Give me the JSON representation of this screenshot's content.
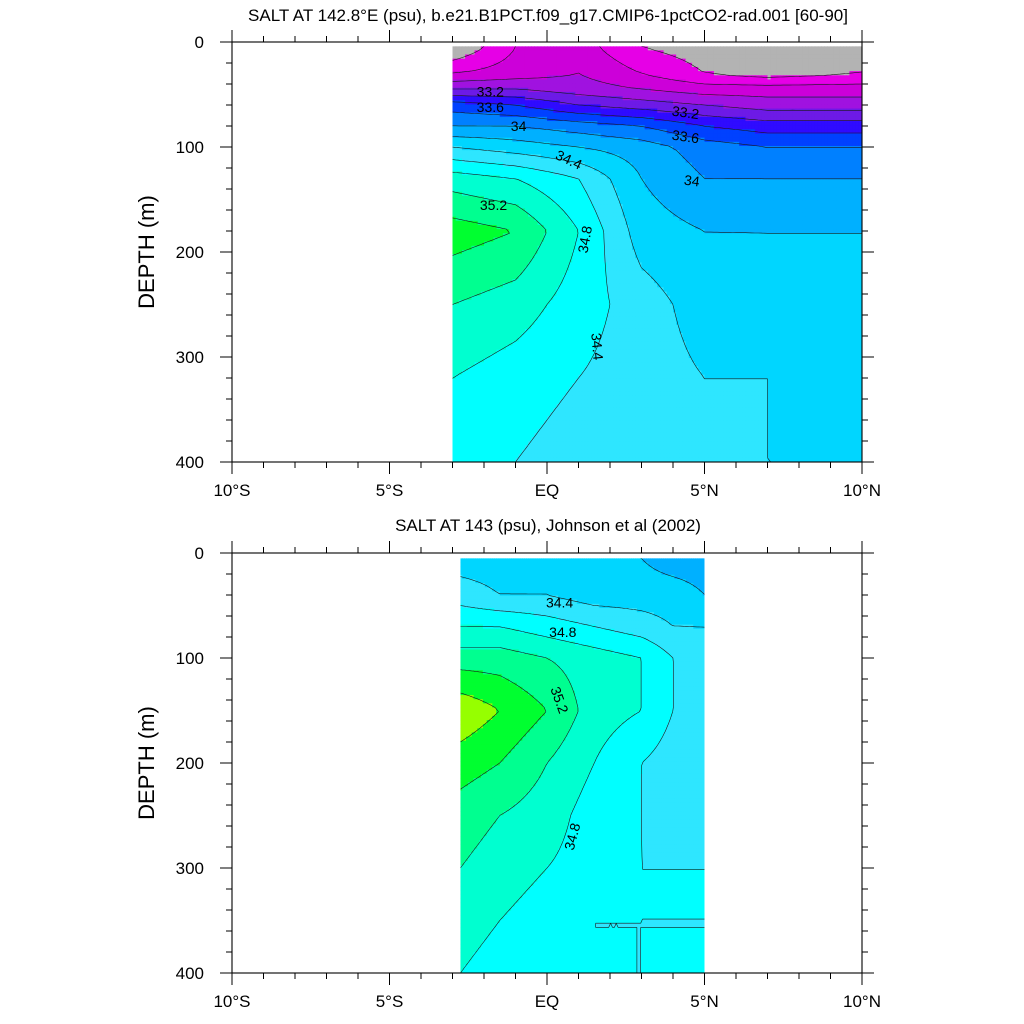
{
  "chart_data": [
    {
      "type": "heatmap",
      "title": "SALT AT 142.8°E (psu), b.e21.B1PCT.f09_g17.CMIP6-1pctCO2-rad.001 [60-90]",
      "ylabel": "DEPTH (m)",
      "xlabel": "",
      "xlim": [
        -10,
        10
      ],
      "ylim": [
        0,
        400
      ],
      "y_reversed": true,
      "x_ticks": [
        {
          "value": -10,
          "label": "10°S"
        },
        {
          "value": -5,
          "label": "5°S"
        },
        {
          "value": 0,
          "label": "EQ"
        },
        {
          "value": 5,
          "label": "5°N"
        },
        {
          "value": 10,
          "label": "10°N"
        }
      ],
      "y_ticks": [
        {
          "value": 0,
          "label": "0"
        },
        {
          "value": 100,
          "label": "100"
        },
        {
          "value": 200,
          "label": "200"
        },
        {
          "value": 300,
          "label": "300"
        },
        {
          "value": 400,
          "label": "400"
        }
      ],
      "data_extent": {
        "x": [
          -3,
          10
        ],
        "y": [
          4,
          400
        ]
      },
      "x": [
        -3,
        -1,
        1,
        3,
        5,
        7,
        10
      ],
      "y": [
        5,
        30,
        45,
        60,
        80,
        100,
        130,
        180,
        250,
        320,
        400
      ],
      "z": [
        [
          32.4,
          32.8,
          32.9,
          32.6,
          32.5,
          32.4,
          32.5
        ],
        [
          32.8,
          32.9,
          33.0,
          32.8,
          32.6,
          32.5,
          32.6
        ],
        [
          33.2,
          33.2,
          33.1,
          33.0,
          32.9,
          32.9,
          32.9
        ],
        [
          33.7,
          33.6,
          33.4,
          33.3,
          33.2,
          33.1,
          33.1
        ],
        [
          34.0,
          34.0,
          33.9,
          33.8,
          33.6,
          33.5,
          33.5
        ],
        [
          34.4,
          34.3,
          34.2,
          34.1,
          33.9,
          33.8,
          33.8
        ],
        [
          34.9,
          34.8,
          34.6,
          34.2,
          34.0,
          34.0,
          34.0
        ],
        [
          35.3,
          35.2,
          34.8,
          34.3,
          34.2,
          34.2,
          34.2
        ],
        [
          35.0,
          34.9,
          34.7,
          34.5,
          34.3,
          34.2,
          34.2
        ],
        [
          34.8,
          34.7,
          34.6,
          34.5,
          34.4,
          34.4,
          34.3
        ],
        [
          34.7,
          34.6,
          34.5,
          34.5,
          34.4,
          34.4,
          34.4
        ]
      ],
      "contour_levels": [
        32.4,
        32.6,
        32.8,
        33.0,
        33.2,
        33.4,
        33.6,
        33.8,
        34.0,
        34.2,
        34.4,
        34.6,
        34.8,
        35.0,
        35.2,
        35.4,
        35.6
      ],
      "contour_labels": [
        {
          "x": -1.8,
          "y": 47,
          "text": "33.2",
          "rotate": 0
        },
        {
          "x": -1.8,
          "y": 62,
          "text": "33.6",
          "rotate": 0
        },
        {
          "x": -0.9,
          "y": 80,
          "text": "34",
          "rotate": 0
        },
        {
          "x": 0.7,
          "y": 112,
          "text": "34.4",
          "rotate": 25
        },
        {
          "x": -1.7,
          "y": 155,
          "text": "35.2",
          "rotate": 0
        },
        {
          "x": 1.2,
          "y": 188,
          "text": "34.8",
          "rotate": -80
        },
        {
          "x": 1.6,
          "y": 290,
          "text": "34.4",
          "rotate": 85
        },
        {
          "x": 4.4,
          "y": 67,
          "text": "33.2",
          "rotate": 8
        },
        {
          "x": 4.4,
          "y": 90,
          "text": "33.6",
          "rotate": 8
        },
        {
          "x": 4.6,
          "y": 132,
          "text": "34",
          "rotate": 8
        }
      ]
    },
    {
      "type": "heatmap",
      "title": "SALT AT 143 (psu), Johnson et al (2002)",
      "ylabel": "DEPTH (m)",
      "xlabel": "",
      "xlim": [
        -10,
        10
      ],
      "ylim": [
        0,
        400
      ],
      "y_reversed": true,
      "x_ticks": [
        {
          "value": -10,
          "label": "10°S"
        },
        {
          "value": -5,
          "label": "5°S"
        },
        {
          "value": 0,
          "label": "EQ"
        },
        {
          "value": 5,
          "label": "5°N"
        },
        {
          "value": 10,
          "label": "10°N"
        }
      ],
      "y_ticks": [
        {
          "value": 0,
          "label": "0"
        },
        {
          "value": 100,
          "label": "100"
        },
        {
          "value": 200,
          "label": "200"
        },
        {
          "value": 300,
          "label": "300"
        },
        {
          "value": 400,
          "label": "400"
        }
      ],
      "data_extent": {
        "x": [
          -2.75,
          5
        ],
        "y": [
          5,
          400
        ]
      },
      "x": [
        -2.75,
        -1.5,
        0,
        1.5,
        3,
        4,
        5
      ],
      "y": [
        5,
        40,
        70,
        100,
        150,
        200,
        250,
        300,
        350,
        400
      ],
      "z": [
        [
          34.3,
          34.3,
          34.3,
          34.2,
          34.2,
          34.1,
          34.1
        ],
        [
          34.5,
          34.4,
          34.4,
          34.3,
          34.3,
          34.3,
          34.2
        ],
        [
          34.8,
          34.8,
          34.7,
          34.6,
          34.5,
          34.4,
          34.4
        ],
        [
          35.1,
          35.1,
          35.0,
          34.9,
          34.8,
          34.6,
          34.5
        ],
        [
          35.55,
          35.4,
          35.2,
          34.9,
          34.8,
          34.6,
          34.5
        ],
        [
          35.3,
          35.2,
          35.0,
          34.8,
          34.6,
          34.5,
          34.5
        ],
        [
          35.1,
          35.0,
          34.9,
          34.7,
          34.6,
          34.5,
          34.5
        ],
        [
          35.0,
          34.9,
          34.8,
          34.7,
          34.6,
          34.6,
          34.6
        ],
        [
          34.9,
          34.8,
          34.7,
          34.6,
          34.6,
          34.6,
          34.6
        ],
        [
          34.8,
          34.7,
          34.7,
          34.6,
          34.6,
          34.6,
          34.6
        ]
      ],
      "contour_levels": [
        34.2,
        34.4,
        34.6,
        34.8,
        35.0,
        35.2,
        35.4
      ],
      "contour_labels": [
        {
          "x": 0.4,
          "y": 47,
          "text": "34.4",
          "rotate": 0
        },
        {
          "x": 0.5,
          "y": 75,
          "text": "34.8",
          "rotate": 0
        },
        {
          "x": 0.4,
          "y": 140,
          "text": "35.2",
          "rotate": 70
        },
        {
          "x": 0.8,
          "y": 270,
          "text": "34.8",
          "rotate": -75
        }
      ]
    }
  ],
  "colormap": {
    "levels": [
      32.4,
      32.6,
      32.8,
      33.0,
      33.2,
      33.4,
      33.6,
      33.8,
      34.0,
      34.2,
      34.4,
      34.6,
      34.8,
      35.0,
      35.2,
      35.4
    ],
    "colors": [
      "#8c8c8c",
      "#b3b3b3",
      "#e600e6",
      "#cc00d9",
      "#a012e0",
      "#6d1ae6",
      "#2f0bff",
      "#0041ff",
      "#0080ff",
      "#00b0ff",
      "#00d6ff",
      "#2ee6ff",
      "#00ffff",
      "#00ffd0",
      "#00ff90",
      "#00ff30",
      "#96ff00"
    ]
  }
}
